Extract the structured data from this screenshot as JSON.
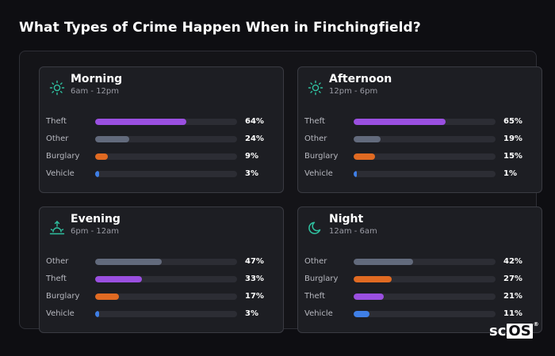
{
  "page": {
    "title": "What Types of Crime Happen When in Finchingfield?"
  },
  "logo": {
    "text_plain": "sc",
    "text_boxed": "OS",
    "registered": "®"
  },
  "colors": {
    "Theft": "#9a4fe0",
    "Other": "#626a7c",
    "Burglary": "#e06a22",
    "Vehicle": "#3f7fe6",
    "icon_accent": "#2fc1a0"
  },
  "chart_data": [
    {
      "type": "bar",
      "title": "Morning",
      "subtitle": "6am - 12pm",
      "icon": "sun-icon",
      "categories": [
        "Theft",
        "Other",
        "Burglary",
        "Vehicle"
      ],
      "values": [
        64,
        24,
        9,
        3
      ],
      "value_labels": [
        "64%",
        "24%",
        "9%",
        "3%"
      ],
      "ylim": [
        0,
        100
      ]
    },
    {
      "type": "bar",
      "title": "Afternoon",
      "subtitle": "12pm - 6pm",
      "icon": "sun-icon",
      "categories": [
        "Theft",
        "Other",
        "Burglary",
        "Vehicle"
      ],
      "values": [
        65,
        19,
        15,
        1
      ],
      "value_labels": [
        "65%",
        "19%",
        "15%",
        "1%"
      ],
      "ylim": [
        0,
        100
      ]
    },
    {
      "type": "bar",
      "title": "Evening",
      "subtitle": "6pm - 12am",
      "icon": "sunset-icon",
      "categories": [
        "Other",
        "Theft",
        "Burglary",
        "Vehicle"
      ],
      "values": [
        47,
        33,
        17,
        3
      ],
      "value_labels": [
        "47%",
        "33%",
        "17%",
        "3%"
      ],
      "ylim": [
        0,
        100
      ]
    },
    {
      "type": "bar",
      "title": "Night",
      "subtitle": "12am - 6am",
      "icon": "moon-icon",
      "categories": [
        "Other",
        "Burglary",
        "Theft",
        "Vehicle"
      ],
      "values": [
        42,
        27,
        21,
        11
      ],
      "value_labels": [
        "42%",
        "27%",
        "21%",
        "11%"
      ],
      "ylim": [
        0,
        100
      ]
    }
  ]
}
